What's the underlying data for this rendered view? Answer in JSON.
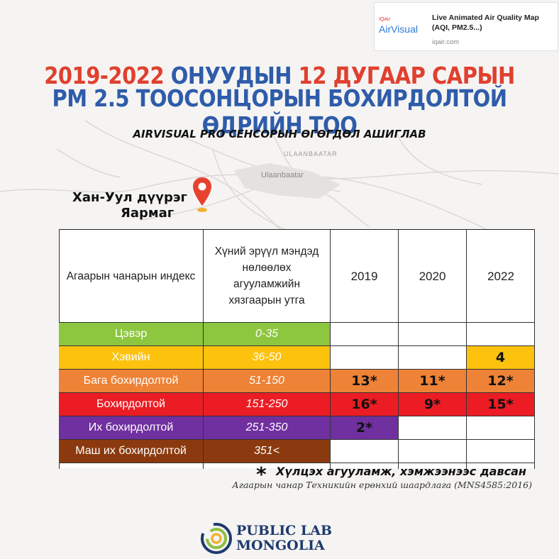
{
  "preview": {
    "logo_small": "IQAir",
    "logo_brand": "AirVisual",
    "title": "Live Animated Air Quality Map (AQI, PM2.5...)",
    "domain": "iqair.com"
  },
  "title": {
    "line1_part1": "2019-2022",
    "line1_part2": " ОНУУДЫН ",
    "line1_part3": "12 ДУГААР САРЫН",
    "line2": "PM 2.5 ТООСОНЦОРЫН БОХИРДОЛТОЙ ӨДРИЙН ТОО",
    "subtitle": "AIRVISUAL PRO СЕНСОРЫН ӨГӨГДӨЛ АШИГЛАВ"
  },
  "map": {
    "label_city_upper": "ULAANBAATAR",
    "label_city": "Ulaanbaatar"
  },
  "location": {
    "line1": "Хан-Уул дүүрэг",
    "line2": "Яармаг",
    "pin_color": "#e8412f"
  },
  "table": {
    "headers": {
      "index": "Агаарын чанарын индекс",
      "limit": "Хүний эрүүл мэндэд нөлөөлөх агууламжийн хязгаарын утга",
      "y2019": "2019",
      "y2020": "2020",
      "y2022": "2022"
    },
    "rows": [
      {
        "label": "Цэвэр",
        "limit": "0-35",
        "v2019": "",
        "v2020": "",
        "v2022": "",
        "color": "#8dc63f"
      },
      {
        "label": "Хэвийн",
        "limit": "36-50",
        "v2019": "",
        "v2020": "",
        "v2022": "4",
        "color": "#fcc20e"
      },
      {
        "label": "Бага бохирдолтой",
        "limit": "51-150",
        "v2019": "13*",
        "v2020": "11*",
        "v2022": "12*",
        "color": "#ee8236"
      },
      {
        "label": "Бохирдолтой",
        "limit": "151-250",
        "v2019": "16*",
        "v2020": "9*",
        "v2022": "15*",
        "color": "#ec1c24"
      },
      {
        "label": "Их бохирдолтой",
        "limit": "251-350",
        "v2019": "2*",
        "v2020": "",
        "v2022": "",
        "color": "#7030a0"
      },
      {
        "label": "Маш их бохирдолтой",
        "limit": "351<",
        "v2019": "",
        "v2020": "",
        "v2022": "",
        "color": "#8b3a0f"
      }
    ]
  },
  "notes": {
    "star": "*",
    "line1": "Хүлцэх агууламж, хэмжээнээс давсан",
    "line2": "Агаарын чанар Техникийн ерөнхий шаардлага (MNS4585:2016)"
  },
  "footer": {
    "line1": "PUBLIC LAB",
    "line2": "MONGOLIA"
  }
}
